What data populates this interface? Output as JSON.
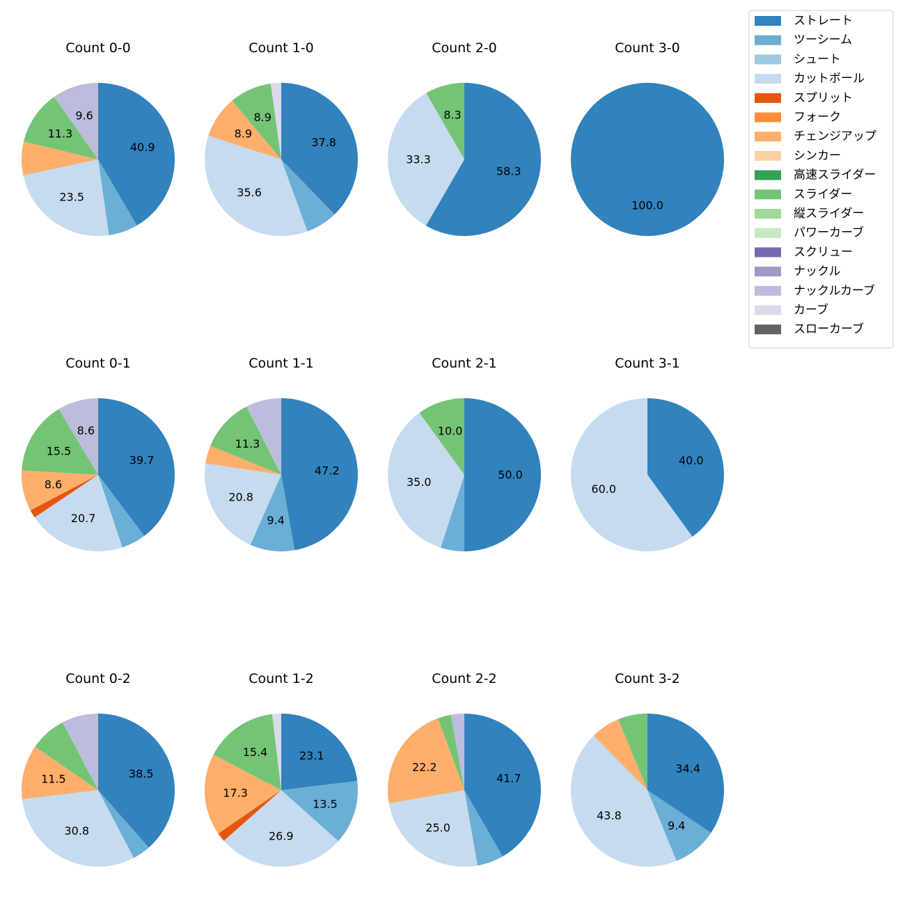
{
  "legend": {
    "position": "top-right",
    "entries": [
      {
        "label": "ストレート",
        "color": "#3182bd"
      },
      {
        "label": "ツーシーム",
        "color": "#6baed6"
      },
      {
        "label": "シュート",
        "color": "#9ecae1"
      },
      {
        "label": "カットボール",
        "color": "#c6dbef"
      },
      {
        "label": "スプリット",
        "color": "#e6550d"
      },
      {
        "label": "フォーク",
        "color": "#fd8d3c"
      },
      {
        "label": "チェンジアップ",
        "color": "#fdae6b"
      },
      {
        "label": "シンカー",
        "color": "#fdd0a2"
      },
      {
        "label": "高速スライダー",
        "color": "#31a354"
      },
      {
        "label": "スライダー",
        "color": "#74c476"
      },
      {
        "label": "縦スライダー",
        "color": "#a1d99b"
      },
      {
        "label": "パワーカーブ",
        "color": "#c7e9c0"
      },
      {
        "label": "スクリュー",
        "color": "#756bb1"
      },
      {
        "label": "ナックル",
        "color": "#9e9ac8"
      },
      {
        "label": "ナックルカーブ",
        "color": "#bcbddc"
      },
      {
        "label": "カーブ",
        "color": "#dadaeb"
      },
      {
        "label": "スローカーブ",
        "color": "#636363"
      }
    ]
  },
  "chart_data": [
    {
      "type": "pie",
      "title": "Count 0-0",
      "slices": [
        {
          "label": "ストレート",
          "value": 40.9,
          "text": "40.9"
        },
        {
          "label": "ツーシーム",
          "value": 6.1,
          "text": ""
        },
        {
          "label": "カットボール",
          "value": 23.5,
          "text": "23.5"
        },
        {
          "label": "チェンジアップ",
          "value": 7.0,
          "text": ""
        },
        {
          "label": "スライダー",
          "value": 11.3,
          "text": "11.3"
        },
        {
          "label": "ナックルカーブ",
          "value": 9.6,
          "text": "9.6"
        }
      ]
    },
    {
      "type": "pie",
      "title": "Count 1-0",
      "slices": [
        {
          "label": "ストレート",
          "value": 37.8,
          "text": "37.8"
        },
        {
          "label": "ツーシーム",
          "value": 6.7,
          "text": ""
        },
        {
          "label": "カットボール",
          "value": 35.6,
          "text": "35.6"
        },
        {
          "label": "チェンジアップ",
          "value": 8.9,
          "text": "8.9"
        },
        {
          "label": "スライダー",
          "value": 8.9,
          "text": "8.9"
        },
        {
          "label": "カーブ",
          "value": 2.2,
          "text": ""
        }
      ]
    },
    {
      "type": "pie",
      "title": "Count 2-0",
      "slices": [
        {
          "label": "ストレート",
          "value": 58.3,
          "text": "58.3"
        },
        {
          "label": "カットボール",
          "value": 33.3,
          "text": "33.3"
        },
        {
          "label": "スライダー",
          "value": 8.3,
          "text": "8.3"
        }
      ]
    },
    {
      "type": "pie",
      "title": "Count 3-0",
      "slices": [
        {
          "label": "ストレート",
          "value": 100.0,
          "text": "100.0"
        }
      ]
    },
    {
      "type": "pie",
      "title": "Count 0-1",
      "slices": [
        {
          "label": "ストレート",
          "value": 39.7,
          "text": "39.7"
        },
        {
          "label": "ツーシーム",
          "value": 5.2,
          "text": ""
        },
        {
          "label": "カットボール",
          "value": 20.7,
          "text": "20.7"
        },
        {
          "label": "スプリット",
          "value": 1.7,
          "text": ""
        },
        {
          "label": "チェンジアップ",
          "value": 8.6,
          "text": "8.6"
        },
        {
          "label": "スライダー",
          "value": 15.5,
          "text": "15.5"
        },
        {
          "label": "ナックルカーブ",
          "value": 8.6,
          "text": "8.6"
        }
      ]
    },
    {
      "type": "pie",
      "title": "Count 1-1",
      "slices": [
        {
          "label": "ストレート",
          "value": 47.2,
          "text": "47.2"
        },
        {
          "label": "ツーシーム",
          "value": 9.4,
          "text": "9.4"
        },
        {
          "label": "カットボール",
          "value": 20.8,
          "text": "20.8"
        },
        {
          "label": "チェンジアップ",
          "value": 3.8,
          "text": ""
        },
        {
          "label": "スライダー",
          "value": 11.3,
          "text": "11.3"
        },
        {
          "label": "ナックルカーブ",
          "value": 7.5,
          "text": ""
        }
      ]
    },
    {
      "type": "pie",
      "title": "Count 2-1",
      "slices": [
        {
          "label": "ストレート",
          "value": 50.0,
          "text": "50.0"
        },
        {
          "label": "ツーシーム",
          "value": 5.0,
          "text": ""
        },
        {
          "label": "カットボール",
          "value": 35.0,
          "text": "35.0"
        },
        {
          "label": "スライダー",
          "value": 10.0,
          "text": "10.0"
        }
      ]
    },
    {
      "type": "pie",
      "title": "Count 3-1",
      "slices": [
        {
          "label": "ストレート",
          "value": 40.0,
          "text": "40.0"
        },
        {
          "label": "カットボール",
          "value": 60.0,
          "text": "60.0"
        }
      ]
    },
    {
      "type": "pie",
      "title": "Count 0-2",
      "slices": [
        {
          "label": "ストレート",
          "value": 38.5,
          "text": "38.5"
        },
        {
          "label": "ツーシーム",
          "value": 3.8,
          "text": ""
        },
        {
          "label": "カットボール",
          "value": 30.8,
          "text": "30.8"
        },
        {
          "label": "チェンジアップ",
          "value": 11.5,
          "text": "11.5"
        },
        {
          "label": "スライダー",
          "value": 7.7,
          "text": ""
        },
        {
          "label": "ナックルカーブ",
          "value": 7.7,
          "text": ""
        }
      ]
    },
    {
      "type": "pie",
      "title": "Count 1-2",
      "slices": [
        {
          "label": "ストレート",
          "value": 23.1,
          "text": "23.1"
        },
        {
          "label": "ツーシーム",
          "value": 13.5,
          "text": "13.5"
        },
        {
          "label": "カットボール",
          "value": 26.9,
          "text": "26.9"
        },
        {
          "label": "スプリット",
          "value": 1.9,
          "text": ""
        },
        {
          "label": "チェンジアップ",
          "value": 17.3,
          "text": "17.3"
        },
        {
          "label": "スライダー",
          "value": 15.4,
          "text": "15.4"
        },
        {
          "label": "カーブ",
          "value": 1.9,
          "text": ""
        }
      ]
    },
    {
      "type": "pie",
      "title": "Count 2-2",
      "slices": [
        {
          "label": "ストレート",
          "value": 41.7,
          "text": "41.7"
        },
        {
          "label": "ツーシーム",
          "value": 5.6,
          "text": ""
        },
        {
          "label": "カットボール",
          "value": 25.0,
          "text": "25.0"
        },
        {
          "label": "チェンジアップ",
          "value": 22.2,
          "text": "22.2"
        },
        {
          "label": "スライダー",
          "value": 2.8,
          "text": ""
        },
        {
          "label": "ナックルカーブ",
          "value": 2.8,
          "text": ""
        }
      ]
    },
    {
      "type": "pie",
      "title": "Count 3-2",
      "slices": [
        {
          "label": "ストレート",
          "value": 34.4,
          "text": "34.4"
        },
        {
          "label": "ツーシーム",
          "value": 9.4,
          "text": "9.4"
        },
        {
          "label": "カットボール",
          "value": 43.8,
          "text": "43.8"
        },
        {
          "label": "チェンジアップ",
          "value": 6.2,
          "text": ""
        },
        {
          "label": "スライダー",
          "value": 6.2,
          "text": ""
        }
      ]
    }
  ]
}
